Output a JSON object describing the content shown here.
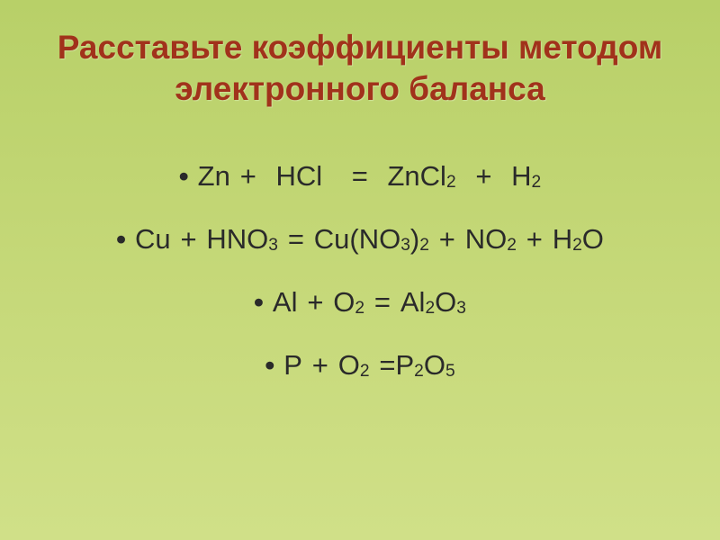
{
  "slide": {
    "title": "Расставьте коэффициенты методом электронного баланса",
    "title_color": "#a1321b",
    "title_fontsize": 37,
    "body_color": "#2a2a2a",
    "body_fontsize": 31,
    "background_gradient": [
      "#b8d068",
      "#c5d878",
      "#d0e088"
    ],
    "bullet_char": "•",
    "equations": [
      {
        "tokens": [
          {
            "t": "Zn"
          },
          {
            "sp": true
          },
          {
            "t": "+"
          },
          {
            "sp": true
          },
          {
            "sp": true
          },
          {
            "t": "HCl"
          },
          {
            "sp": true
          },
          {
            "sp": true
          },
          {
            "sp": true
          },
          {
            "t": "="
          },
          {
            "sp": true
          },
          {
            "sp": true
          },
          {
            "t": "ZnCl"
          },
          {
            "sub": "2"
          },
          {
            "sp": true
          },
          {
            "sp": true
          },
          {
            "t": "+"
          },
          {
            "sp": true
          },
          {
            "sp": true
          },
          {
            "t": "H"
          },
          {
            "sub": "2"
          }
        ]
      },
      {
        "tokens": [
          {
            "t": "Cu"
          },
          {
            "sp": true
          },
          {
            "t": "+"
          },
          {
            "sp": true
          },
          {
            "t": "HNO"
          },
          {
            "sub": "3"
          },
          {
            "sp": true
          },
          {
            "t": "="
          },
          {
            "sp": true
          },
          {
            "t": "Cu(NO"
          },
          {
            "sub": "3"
          },
          {
            "t": ")"
          },
          {
            "sub": "2"
          },
          {
            "sp": true
          },
          {
            "t": "+"
          },
          {
            "sp": true
          },
          {
            "t": "NO"
          },
          {
            "sub": "2"
          },
          {
            "sp": true
          },
          {
            "t": "+"
          },
          {
            "sp": true
          },
          {
            "t": "H"
          },
          {
            "sub": "2"
          },
          {
            "t": "O"
          }
        ]
      },
      {
        "tokens": [
          {
            "t": "Al"
          },
          {
            "sp": true
          },
          {
            "t": "+"
          },
          {
            "sp": true
          },
          {
            "t": "O"
          },
          {
            "sub": "2"
          },
          {
            "sp": true
          },
          {
            "t": "="
          },
          {
            "sp": true
          },
          {
            "t": "Al"
          },
          {
            "sub": "2"
          },
          {
            "t": "O"
          },
          {
            "sub": "3"
          }
        ]
      },
      {
        "tokens": [
          {
            "t": "P"
          },
          {
            "sp": true
          },
          {
            "t": "+"
          },
          {
            "sp": true
          },
          {
            "t": "O"
          },
          {
            "sub": "2"
          },
          {
            "sp": true
          },
          {
            "t": "="
          },
          {
            "t": "P"
          },
          {
            "sub": "2"
          },
          {
            "t": "O"
          },
          {
            "sub": "5"
          }
        ]
      }
    ]
  }
}
